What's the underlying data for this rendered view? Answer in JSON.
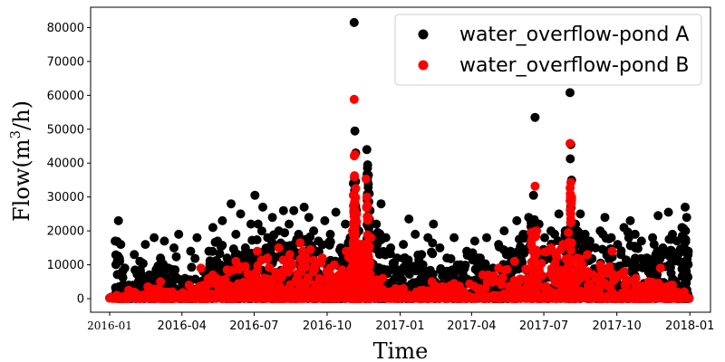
{
  "chart_data": {
    "type": "scatter",
    "title": "",
    "xlabel": "Time",
    "ylabel": "Flow(m",
    "ylabel_sup": "3",
    "ylabel_tail": "/h)",
    "x_range": [
      "2015-12-08",
      "2018-01-27"
    ],
    "ylim": [
      -4000,
      86000
    ],
    "x_ticks": [
      {
        "date": "2016-01-01",
        "label": "2016-01",
        "style": "serif"
      },
      {
        "date": "2016-04-01",
        "label": "2016-04",
        "style": "sans"
      },
      {
        "date": "2016-07-01",
        "label": "2016-07",
        "style": "sans"
      },
      {
        "date": "2016-10-01",
        "label": "2016-10",
        "style": "sans"
      },
      {
        "date": "2017-01-01",
        "label": "2017-01",
        "style": "sans"
      },
      {
        "date": "2017-04-01",
        "label": "2017-04",
        "style": "sans"
      },
      {
        "date": "2017-07-01",
        "label": "2017-07",
        "style": "sans"
      },
      {
        "date": "2017-10-01",
        "label": "2017-10",
        "style": "sans"
      },
      {
        "date": "2018-01-01",
        "label": "2018-01",
        "style": "sans"
      }
    ],
    "y_ticks": [
      0,
      10000,
      20000,
      30000,
      40000,
      50000,
      60000,
      70000,
      80000
    ],
    "legend": {
      "placement": "top-right"
    },
    "grid": false,
    "series": [
      {
        "name": "water_overflow-pond A",
        "color": "#000000",
        "points": [
          [
            "2016-01-08",
            17000
          ],
          [
            "2016-01-12",
            23000
          ],
          [
            "2016-01-15",
            16000
          ],
          [
            "2016-01-20",
            9000
          ],
          [
            "2016-01-25",
            4000
          ],
          [
            "2016-02-01",
            13000
          ],
          [
            "2016-02-08",
            11000
          ],
          [
            "2016-02-15",
            16000
          ],
          [
            "2016-02-20",
            7000
          ],
          [
            "2016-02-26",
            18000
          ],
          [
            "2016-03-05",
            12000
          ],
          [
            "2016-03-10",
            17000
          ],
          [
            "2016-03-15",
            9000
          ],
          [
            "2016-03-22",
            15000
          ],
          [
            "2016-03-28",
            19000
          ],
          [
            "2016-04-05",
            6000
          ],
          [
            "2016-04-12",
            14000
          ],
          [
            "2016-04-20",
            18000
          ],
          [
            "2016-04-28",
            8000
          ],
          [
            "2016-05-05",
            14000
          ],
          [
            "2016-05-10",
            21000
          ],
          [
            "2016-05-16",
            17000
          ],
          [
            "2016-05-22",
            23000
          ],
          [
            "2016-05-28",
            12000
          ],
          [
            "2016-06-02",
            28000
          ],
          [
            "2016-06-08",
            19000
          ],
          [
            "2016-06-14",
            25000
          ],
          [
            "2016-06-20",
            15000
          ],
          [
            "2016-06-27",
            22000
          ],
          [
            "2016-07-02",
            30500
          ],
          [
            "2016-07-06",
            22000
          ],
          [
            "2016-07-12",
            27000
          ],
          [
            "2016-07-18",
            18000
          ],
          [
            "2016-07-24",
            24000
          ],
          [
            "2016-08-01",
            20000
          ],
          [
            "2016-08-07",
            26000
          ],
          [
            "2016-08-14",
            22000
          ],
          [
            "2016-08-20",
            26000
          ],
          [
            "2016-08-26",
            19000
          ],
          [
            "2016-09-02",
            27000
          ],
          [
            "2016-09-08",
            24000
          ],
          [
            "2016-09-14",
            20000
          ],
          [
            "2016-09-20",
            17000
          ],
          [
            "2016-09-28",
            23000
          ],
          [
            "2016-10-05",
            19000
          ],
          [
            "2016-10-12",
            25500
          ],
          [
            "2016-10-18",
            15000
          ],
          [
            "2016-10-24",
            22000
          ],
          [
            "2016-10-30",
            18000
          ],
          [
            "2016-11-03",
            34000
          ],
          [
            "2016-11-04",
            81500
          ],
          [
            "2016-11-05",
            49500
          ],
          [
            "2016-11-06",
            43000
          ],
          [
            "2016-11-07",
            26000
          ],
          [
            "2016-11-10",
            20000
          ],
          [
            "2016-11-15",
            16000
          ],
          [
            "2016-11-20",
            44000
          ],
          [
            "2016-11-21",
            39500
          ],
          [
            "2016-11-22",
            36500
          ],
          [
            "2016-11-23",
            31000
          ],
          [
            "2016-11-24",
            26000
          ],
          [
            "2016-12-02",
            22000
          ],
          [
            "2016-12-08",
            28000
          ],
          [
            "2016-12-14",
            18000
          ],
          [
            "2016-12-20",
            15000
          ],
          [
            "2016-12-28",
            12000
          ],
          [
            "2017-01-05",
            16000
          ],
          [
            "2017-01-12",
            23500
          ],
          [
            "2017-01-20",
            19000
          ],
          [
            "2017-01-28",
            13000
          ],
          [
            "2017-02-05",
            18000
          ],
          [
            "2017-02-12",
            22000
          ],
          [
            "2017-02-20",
            15000
          ],
          [
            "2017-03-01",
            12000
          ],
          [
            "2017-03-10",
            18000
          ],
          [
            "2017-03-18",
            10000
          ],
          [
            "2017-03-26",
            14000
          ],
          [
            "2017-04-05",
            17000
          ],
          [
            "2017-04-12",
            12000
          ],
          [
            "2017-04-20",
            18000
          ],
          [
            "2017-04-28",
            9000
          ],
          [
            "2017-05-05",
            16000
          ],
          [
            "2017-05-12",
            20000
          ],
          [
            "2017-05-20",
            14000
          ],
          [
            "2017-05-28",
            23000
          ],
          [
            "2017-06-05",
            19000
          ],
          [
            "2017-06-12",
            24000
          ],
          [
            "2017-06-18",
            30500
          ],
          [
            "2017-06-20",
            53500
          ],
          [
            "2017-06-25",
            22000
          ],
          [
            "2017-07-02",
            18000
          ],
          [
            "2017-07-10",
            20000
          ],
          [
            "2017-07-20",
            25000
          ],
          [
            "2017-07-28",
            20000
          ],
          [
            "2017-08-03",
            60800
          ],
          [
            "2017-08-04",
            45500
          ],
          [
            "2017-08-05",
            35000
          ],
          [
            "2017-08-10",
            22000
          ],
          [
            "2017-08-16",
            25000
          ],
          [
            "2017-08-22",
            19000
          ],
          [
            "2017-08-28",
            17000
          ],
          [
            "2017-09-04",
            15000
          ],
          [
            "2017-09-10",
            20000
          ],
          [
            "2017-09-16",
            24000
          ],
          [
            "2017-09-24",
            18000
          ],
          [
            "2017-10-02",
            16000
          ],
          [
            "2017-10-10",
            21000
          ],
          [
            "2017-10-18",
            23000
          ],
          [
            "2017-10-24",
            19000
          ],
          [
            "2017-11-01",
            17000
          ],
          [
            "2017-11-08",
            12000
          ],
          [
            "2017-11-15",
            18000
          ],
          [
            "2017-11-22",
            24500
          ],
          [
            "2017-11-28",
            15000
          ],
          [
            "2017-12-05",
            25500
          ],
          [
            "2017-12-10",
            19000
          ],
          [
            "2017-12-16",
            17000
          ],
          [
            "2017-12-22",
            21000
          ],
          [
            "2017-12-26",
            27000
          ],
          [
            "2017-12-28",
            24000
          ],
          [
            "2017-12-30",
            14000
          ]
        ]
      },
      {
        "name": "water_overflow-pond B",
        "color": "#ff0000",
        "points": [
          [
            "2016-01-10",
            1000
          ],
          [
            "2016-01-25",
            2500
          ],
          [
            "2016-02-18",
            3500
          ],
          [
            "2016-03-05",
            5000
          ],
          [
            "2016-03-20",
            2000
          ],
          [
            "2016-04-10",
            4000
          ],
          [
            "2016-04-25",
            9000
          ],
          [
            "2016-05-10",
            7000
          ],
          [
            "2016-05-28",
            8500
          ],
          [
            "2016-06-08",
            11000
          ],
          [
            "2016-06-20",
            9500
          ],
          [
            "2016-07-05",
            14000
          ],
          [
            "2016-07-18",
            12000
          ],
          [
            "2016-08-01",
            15000
          ],
          [
            "2016-08-15",
            13000
          ],
          [
            "2016-08-28",
            16500
          ],
          [
            "2016-09-10",
            14500
          ],
          [
            "2016-09-25",
            12000
          ],
          [
            "2016-10-10",
            10000
          ],
          [
            "2016-10-25",
            14000
          ],
          [
            "2016-11-02",
            20000
          ],
          [
            "2016-11-03",
            30500
          ],
          [
            "2016-11-04",
            58800
          ],
          [
            "2016-11-05",
            42500
          ],
          [
            "2016-11-06",
            32500
          ],
          [
            "2016-11-07",
            25000
          ],
          [
            "2016-11-12",
            16000
          ],
          [
            "2016-11-19",
            35300
          ],
          [
            "2016-11-20",
            30000
          ],
          [
            "2016-11-21",
            27500
          ],
          [
            "2016-11-22",
            24000
          ],
          [
            "2016-11-25",
            18000
          ],
          [
            "2016-12-10",
            6000
          ],
          [
            "2017-01-05",
            3000
          ],
          [
            "2017-02-10",
            5000
          ],
          [
            "2017-03-10",
            4500
          ],
          [
            "2017-04-15",
            7000
          ],
          [
            "2017-05-05",
            9000
          ],
          [
            "2017-05-25",
            11000
          ],
          [
            "2017-06-15",
            19500
          ],
          [
            "2017-06-20",
            33200
          ],
          [
            "2017-06-22",
            20000
          ],
          [
            "2017-07-10",
            15000
          ],
          [
            "2017-07-25",
            16000
          ],
          [
            "2017-08-01",
            19500
          ],
          [
            "2017-08-03",
            45800
          ],
          [
            "2017-08-04",
            34300
          ],
          [
            "2017-08-05",
            30000
          ],
          [
            "2017-08-12",
            12000
          ],
          [
            "2017-08-25",
            13000
          ],
          [
            "2017-09-10",
            10000
          ],
          [
            "2017-09-25",
            14000
          ],
          [
            "2017-10-10",
            8000
          ],
          [
            "2017-10-25",
            6000
          ],
          [
            "2017-11-10",
            5000
          ],
          [
            "2017-11-25",
            9000
          ],
          [
            "2017-12-10",
            4000
          ],
          [
            "2017-12-25",
            2000
          ]
        ]
      }
    ]
  }
}
